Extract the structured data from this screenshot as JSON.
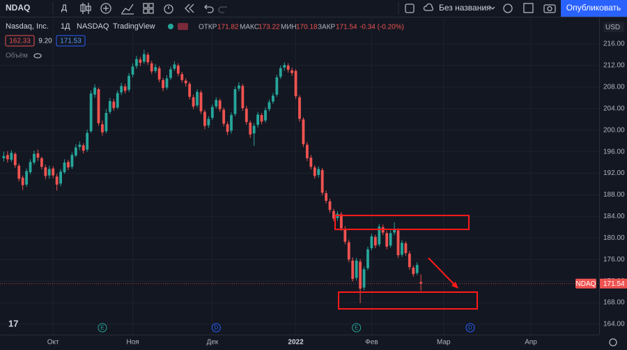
{
  "toolbar": {
    "symbol": "NDAQ",
    "interval": "Д",
    "layout_name": "Без названия",
    "publish": "Опубликовать"
  },
  "legend": {
    "name": "Nasdaq, Inc.",
    "interval": "1Д",
    "exchange": "NASDAQ",
    "source": "TradingView",
    "open_label": "ОТКР",
    "high_label": "МАКС",
    "low_label": "МИН",
    "close_label": "ЗАКР",
    "change": "-0.34 (-0.20%)",
    "price_boxes": [
      "162.33",
      "9.20",
      "171.53"
    ],
    "volume": "Объём"
  },
  "chart_data": {
    "type": "candlestick",
    "up_color": "#26a69a",
    "down_color": "#ef5350",
    "grid": true,
    "currency": "USD",
    "symbol_tag": "NDAQ",
    "xlim": [
      -1,
      157
    ],
    "xticks": [
      {
        "value": 13,
        "label": "Окт"
      },
      {
        "value": 34,
        "label": "Ноя"
      },
      {
        "value": 55,
        "label": "Дек"
      },
      {
        "value": 77,
        "label": "2022"
      },
      {
        "value": 97,
        "label": "Фев"
      },
      {
        "value": 116,
        "label": "Мар"
      },
      {
        "value": 139,
        "label": "Апр"
      }
    ],
    "ylim": [
      162.06,
      220.79
    ],
    "yticks": [
      {
        "value": 164,
        "label": "164.00"
      },
      {
        "value": 168,
        "label": "168.00"
      },
      {
        "value": 172,
        "label": "172.00"
      },
      {
        "value": 176,
        "label": "176.00"
      },
      {
        "value": 180,
        "label": "180.00"
      },
      {
        "value": 184,
        "label": "184.00"
      },
      {
        "value": 188,
        "label": "188.00"
      },
      {
        "value": 192,
        "label": "192.00"
      },
      {
        "value": 196,
        "label": "196.00"
      },
      {
        "value": 200,
        "label": "200.00"
      },
      {
        "value": 204,
        "label": "204.00"
      },
      {
        "value": 208,
        "label": "208.00"
      },
      {
        "value": 212,
        "label": "212.00"
      },
      {
        "value": 216,
        "label": "216.00"
      }
    ],
    "events": [
      {
        "label": "E",
        "x": 26
      },
      {
        "label": "D",
        "x": 56
      },
      {
        "label": "E",
        "x": 93
      },
      {
        "label": "D",
        "x": 123
      }
    ],
    "ohlc": [
      [
        194.8,
        196.0,
        194.2,
        195.2
      ],
      [
        195.4,
        196.1,
        194.0,
        194.6
      ],
      [
        194.5,
        196.3,
        194.1,
        195.8
      ],
      [
        195.6,
        195.9,
        193.0,
        193.5
      ],
      [
        193.4,
        193.8,
        190.5,
        191.0
      ],
      [
        191.2,
        191.6,
        188.9,
        189.8
      ],
      [
        189.9,
        192.9,
        189.5,
        192.4
      ],
      [
        192.2,
        194.6,
        191.8,
        194.1
      ],
      [
        194.0,
        196.2,
        193.6,
        195.6
      ],
      [
        195.7,
        196.4,
        194.3,
        194.9
      ],
      [
        194.8,
        195.1,
        192.7,
        193.2
      ],
      [
        193.1,
        193.6,
        190.9,
        191.5
      ],
      [
        191.6,
        193.4,
        191.0,
        192.8
      ],
      [
        192.9,
        193.3,
        191.1,
        191.6
      ],
      [
        191.4,
        191.9,
        188.8,
        189.9
      ],
      [
        190.1,
        192.8,
        189.6,
        192.3
      ],
      [
        192.2,
        194.6,
        191.9,
        194.0
      ],
      [
        194.1,
        194.5,
        192.6,
        193.1
      ],
      [
        193.2,
        195.9,
        192.8,
        195.4
      ],
      [
        195.3,
        197.4,
        195.0,
        196.8
      ],
      [
        196.9,
        197.9,
        196.3,
        197.3
      ],
      [
        197.2,
        197.6,
        195.7,
        196.2
      ],
      [
        196.4,
        200.1,
        196.0,
        199.5
      ],
      [
        199.8,
        207.4,
        199.5,
        206.8
      ],
      [
        206.6,
        208.5,
        206.0,
        207.9
      ],
      [
        207.6,
        207.9,
        200.8,
        201.3
      ],
      [
        201.1,
        201.8,
        199.0,
        199.6
      ],
      [
        199.8,
        203.9,
        199.4,
        203.2
      ],
      [
        203.4,
        206.0,
        203.0,
        205.4
      ],
      [
        205.3,
        205.8,
        203.6,
        204.1
      ],
      [
        204.2,
        207.4,
        203.9,
        206.9
      ],
      [
        207.0,
        208.8,
        206.5,
        208.2
      ],
      [
        208.1,
        208.6,
        206.8,
        207.3
      ],
      [
        207.5,
        210.6,
        207.1,
        210.1
      ],
      [
        210.3,
        212.4,
        209.8,
        211.8
      ],
      [
        211.9,
        213.8,
        211.4,
        213.2
      ],
      [
        213.1,
        213.6,
        211.9,
        212.5
      ],
      [
        212.7,
        214.9,
        212.3,
        214.1
      ],
      [
        214.0,
        214.4,
        212.1,
        212.6
      ],
      [
        212.4,
        212.9,
        210.4,
        210.9
      ],
      [
        211.0,
        212.3,
        210.6,
        211.7
      ],
      [
        211.5,
        211.9,
        208.9,
        209.4
      ],
      [
        209.3,
        209.7,
        207.2,
        207.8
      ],
      [
        207.9,
        210.2,
        207.5,
        209.6
      ],
      [
        209.7,
        211.8,
        209.3,
        211.3
      ],
      [
        211.4,
        212.8,
        211.0,
        212.2
      ],
      [
        212.0,
        212.4,
        210.0,
        210.5
      ],
      [
        210.4,
        210.8,
        208.8,
        209.3
      ],
      [
        209.2,
        209.6,
        208.1,
        208.7
      ],
      [
        208.6,
        209.0,
        205.7,
        206.2
      ],
      [
        206.1,
        206.6,
        203.9,
        204.4
      ],
      [
        204.6,
        207.6,
        204.2,
        207.1
      ],
      [
        207.0,
        207.4,
        203.0,
        203.5
      ],
      [
        203.4,
        203.8,
        200.2,
        200.8
      ],
      [
        200.9,
        202.6,
        200.4,
        202.1
      ],
      [
        202.3,
        204.8,
        201.9,
        204.3
      ],
      [
        204.4,
        206.1,
        204.0,
        205.6
      ],
      [
        205.5,
        205.9,
        203.4,
        203.9
      ],
      [
        203.8,
        204.2,
        200.7,
        201.2
      ],
      [
        201.1,
        201.6,
        199.1,
        199.7
      ],
      [
        199.9,
        203.3,
        199.4,
        202.8
      ],
      [
        203.0,
        208.1,
        202.6,
        207.6
      ],
      [
        207.7,
        208.9,
        207.2,
        208.3
      ],
      [
        208.2,
        208.6,
        203.6,
        204.1
      ],
      [
        204.0,
        204.5,
        201.0,
        201.5
      ],
      [
        201.4,
        201.8,
        198.6,
        199.2
      ],
      [
        199.4,
        201.3,
        197.1,
        200.8
      ],
      [
        201.0,
        203.4,
        200.5,
        202.9
      ],
      [
        202.8,
        203.2,
        201.1,
        201.6
      ],
      [
        201.8,
        204.2,
        201.4,
        203.7
      ],
      [
        203.9,
        205.7,
        203.5,
        205.2
      ],
      [
        205.3,
        206.9,
        204.9,
        206.4
      ],
      [
        206.6,
        210.3,
        206.2,
        209.8
      ],
      [
        209.9,
        212.0,
        209.5,
        211.5
      ],
      [
        211.6,
        212.6,
        211.0,
        212.1
      ],
      [
        212.0,
        212.4,
        210.7,
        211.2
      ],
      [
        211.1,
        211.6,
        210.1,
        210.6
      ],
      [
        211.0,
        211.3,
        205.8,
        206.3
      ],
      [
        206.1,
        206.5,
        201.6,
        202.1
      ],
      [
        202.0,
        202.4,
        196.9,
        197.4
      ],
      [
        197.3,
        197.8,
        194.3,
        194.8
      ],
      [
        194.9,
        195.4,
        192.7,
        193.2
      ],
      [
        193.1,
        193.5,
        191.0,
        191.5
      ],
      [
        191.7,
        193.3,
        191.2,
        192.8
      ],
      [
        192.6,
        193.0,
        187.9,
        188.4
      ],
      [
        188.3,
        188.8,
        186.4,
        186.9
      ],
      [
        186.8,
        187.3,
        184.7,
        185.2
      ],
      [
        185.0,
        185.4,
        183.1,
        183.6
      ],
      [
        183.7,
        185.0,
        183.2,
        184.5
      ],
      [
        184.4,
        184.8,
        181.3,
        181.8
      ],
      [
        181.7,
        182.2,
        178.8,
        179.3
      ],
      [
        179.2,
        179.7,
        175.5,
        176.0
      ],
      [
        175.8,
        176.4,
        171.9,
        172.4
      ],
      [
        172.6,
        176.3,
        172.1,
        175.8
      ],
      [
        175.6,
        176.1,
        167.9,
        170.6
      ],
      [
        170.8,
        174.7,
        170.3,
        174.2
      ],
      [
        174.4,
        178.4,
        174.0,
        177.9
      ],
      [
        178.1,
        180.8,
        177.7,
        180.3
      ],
      [
        180.2,
        180.6,
        178.1,
        178.6
      ],
      [
        178.8,
        182.6,
        178.4,
        182.1
      ],
      [
        182.0,
        182.5,
        180.5,
        181.0
      ],
      [
        180.9,
        181.3,
        177.9,
        178.4
      ],
      [
        178.6,
        181.4,
        178.2,
        180.9
      ],
      [
        181.0,
        182.9,
        180.5,
        181.5
      ],
      [
        181.4,
        181.8,
        176.3,
        176.8
      ],
      [
        176.9,
        179.6,
        176.5,
        179.1
      ],
      [
        179.0,
        179.4,
        176.7,
        177.2
      ],
      [
        177.1,
        177.6,
        174.1,
        174.6
      ],
      [
        174.5,
        174.9,
        172.8,
        173.3
      ],
      [
        173.5,
        175.5,
        173.1,
        175.0
      ],
      [
        171.82,
        173.22,
        170.18,
        171.54
      ]
    ]
  }
}
